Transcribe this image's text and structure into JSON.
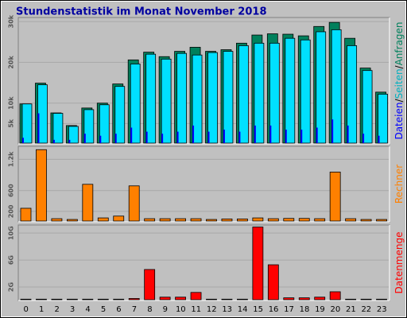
{
  "title": "Stundenstatistik im Monat November 2018",
  "legend_separator": "/",
  "chart_data": [
    {
      "type": "bar",
      "series": [
        {
          "name": "Anfragen",
          "color": "#00805c",
          "values": [
            9800,
            14900,
            7600,
            4500,
            8800,
            10000,
            14700,
            20600,
            22500,
            21400,
            22700,
            23700,
            22700,
            23100,
            24700,
            26700,
            27000,
            26900,
            26500,
            28800,
            29800,
            25900,
            18600,
            12700
          ]
        },
        {
          "name": "Seiten",
          "color": "#00e0ff",
          "values": [
            9800,
            14500,
            7500,
            4300,
            8400,
            9600,
            14100,
            19600,
            22000,
            20800,
            22200,
            21800,
            22400,
            22700,
            24100,
            24700,
            24700,
            25900,
            25500,
            27500,
            28000,
            24100,
            18000,
            12200
          ]
        },
        {
          "name": "Dateien",
          "color": "#0000ff",
          "values": [
            1500,
            7500,
            1000,
            1000,
            2500,
            2000,
            2500,
            4000,
            3000,
            2500,
            3000,
            4500,
            3000,
            3500,
            3000,
            4500,
            4500,
            3500,
            3500,
            4000,
            6000,
            4500,
            2500,
            2000
          ]
        }
      ],
      "ylim": [
        0,
        31000
      ],
      "yticks": [
        {
          "value": 5000,
          "label": "5k"
        },
        {
          "value": 10000,
          "label": "10k"
        },
        {
          "value": 20000,
          "label": "20k"
        },
        {
          "value": 30000,
          "label": "30k"
        }
      ],
      "grid": true
    },
    {
      "type": "bar",
      "series": [
        {
          "name": "Rechner",
          "color": "#ff8000",
          "values": [
            260,
            1385,
            60,
            45,
            720,
            75,
            110,
            690,
            60,
            60,
            60,
            60,
            45,
            55,
            55,
            75,
            60,
            65,
            65,
            60,
            955,
            60,
            45,
            45
          ]
        }
      ],
      "ylim": [
        0,
        1450
      ],
      "yticks": [
        200,
        600,
        {
          "value": 1200,
          "label": "1.2k"
        }
      ],
      "grid": true
    },
    {
      "type": "bar",
      "categories": [
        "0",
        "1",
        "2",
        "3",
        "4",
        "5",
        "6",
        "7",
        "8",
        "9",
        "10",
        "11",
        "12",
        "13",
        "14",
        "15",
        "16",
        "17",
        "18",
        "19",
        "20",
        "21",
        "22",
        "23"
      ],
      "series": [
        {
          "name": "Datenmenge",
          "color": "#ff0000",
          "values": [
            0.2,
            0.2,
            0.2,
            0.2,
            0.2,
            0.2,
            0.2,
            0.3,
            4.6,
            0.5,
            0.5,
            1.2,
            0.2,
            0.2,
            0.2,
            10.9,
            5.3,
            0.4,
            0.4,
            0.5,
            1.3,
            0.2,
            0.2,
            0.2
          ]
        }
      ],
      "ylim": [
        0,
        11.2
      ],
      "yticks": [
        {
          "value": 2,
          "label": "2G"
        },
        {
          "value": 6,
          "label": "6G"
        },
        {
          "value": 10,
          "label": "10G"
        }
      ],
      "grid": true
    }
  ]
}
